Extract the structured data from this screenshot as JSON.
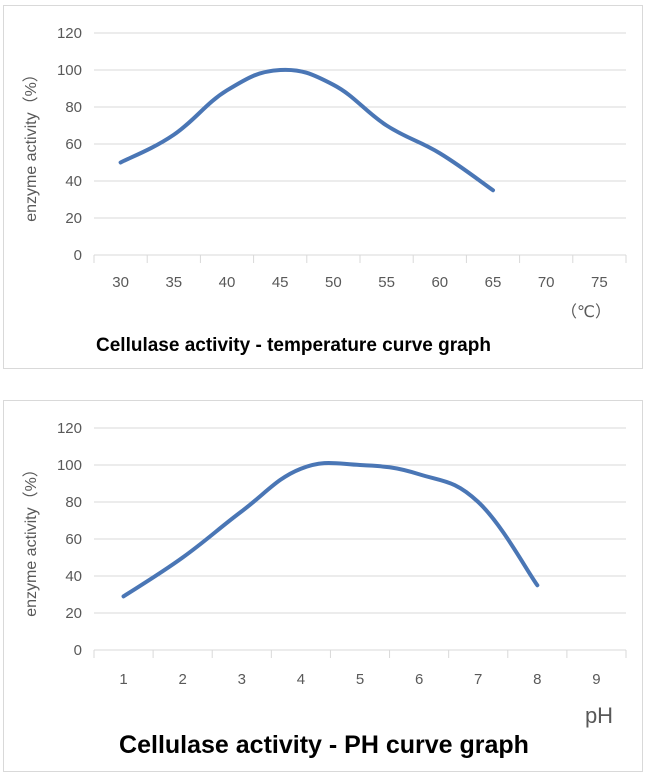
{
  "chart_data": [
    {
      "type": "line",
      "title": "Cellulase activity - temperature curve graph",
      "ylabel": "enzyme activity（%）",
      "xunit": "（℃）",
      "categories": [
        "30",
        "35",
        "40",
        "45",
        "50",
        "55",
        "60",
        "65",
        "70",
        "75"
      ],
      "ylim": [
        0,
        120
      ],
      "yticks": [
        "0",
        "20",
        "40",
        "60",
        "80",
        "100",
        "120"
      ],
      "grid": true,
      "legend": "none",
      "series": [
        {
          "values": [
            50,
            65,
            89,
            100,
            92,
            70,
            55,
            35,
            null,
            null
          ],
          "color": "#4a76b5"
        }
      ]
    },
    {
      "type": "line",
      "title": "Cellulase activity - PH curve graph",
      "ylabel": "enzyme activity（%）",
      "xunit": "pH",
      "categories": [
        "1",
        "2",
        "3",
        "4",
        "5",
        "6",
        "7",
        "8",
        "9"
      ],
      "ylim": [
        0,
        120
      ],
      "yticks": [
        "0",
        "20",
        "40",
        "60",
        "80",
        "100",
        "120"
      ],
      "grid": true,
      "legend": "none",
      "series": [
        {
          "values": [
            29,
            50,
            75,
            98,
            100,
            95,
            80,
            35,
            null
          ],
          "color": "#4a76b5"
        }
      ]
    }
  ]
}
